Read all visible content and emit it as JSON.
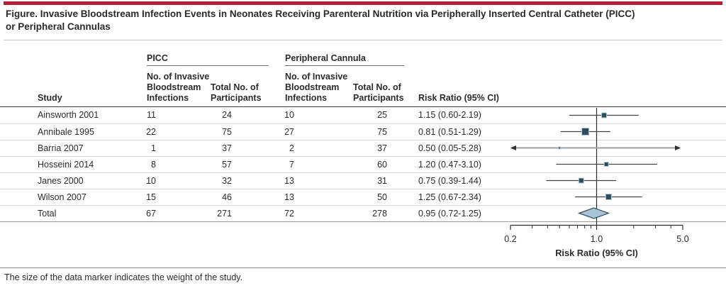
{
  "title": {
    "line1": "Figure. Invasive Bloodstream Infection Events in Neonates Receiving Parenteral Nutrition via Peripherally Inserted Central Catheter (PICC)",
    "line2": "or Peripheral Cannulas"
  },
  "table": {
    "col_study": "Study",
    "group1": {
      "label": "PICC",
      "col_events": "No. of Invasive Bloodstream Infections",
      "col_total": "Total No. of Participants"
    },
    "group2": {
      "label": "Peripheral Cannula",
      "col_events": "No. of Invasive Bloodstream Infections",
      "col_total": "Total No. of Participants"
    },
    "col_rr": "Risk Ratio (95% CI)",
    "rows": [
      {
        "study": "Ainsworth 2001",
        "picc_events": "11",
        "picc_total": "24",
        "pc_events": "10",
        "pc_total": "25",
        "rr": "1.15 (0.60-2.19)"
      },
      {
        "study": "Annibale 1995",
        "picc_events": "22",
        "picc_total": "75",
        "pc_events": "27",
        "pc_total": "75",
        "rr": "0.81 (0.51-1.29)"
      },
      {
        "study": "Barria 2007",
        "picc_events": "1",
        "picc_total": "37",
        "pc_events": "2",
        "pc_total": "37",
        "rr": "0.50 (0.05-5.28)"
      },
      {
        "study": "Hosseini 2014",
        "picc_events": "8",
        "picc_total": "57",
        "pc_events": "7",
        "pc_total": "60",
        "rr": "1.20 (0.47-3.10)"
      },
      {
        "study": "Janes 2000",
        "picc_events": "10",
        "picc_total": "32",
        "pc_events": "13",
        "pc_total": "31",
        "rr": "0.75 (0.39-1.44)"
      },
      {
        "study": "Wilson 2007",
        "picc_events": "15",
        "picc_total": "46",
        "pc_events": "13",
        "pc_total": "50",
        "rr": "1.25 (0.67-2.34)"
      },
      {
        "study": "Total",
        "picc_events": "67",
        "picc_total": "271",
        "pc_events": "72",
        "pc_total": "278",
        "rr": "0.95 (0.72-1.25)"
      }
    ]
  },
  "footer": "The size of the data marker indicates the weight of the study.",
  "chart_data": {
    "type": "scatter",
    "subtype": "forest-plot",
    "xlabel": "Risk Ratio (95% CI)",
    "x_scale": "log",
    "x_min": 0.2,
    "x_max": 5.0,
    "x_ticks_major": [
      0.2,
      1.0,
      5.0
    ],
    "x_tick_labels": [
      "0.2",
      "1.0",
      "5.0"
    ],
    "x_ticks_minor": [
      0.3,
      0.4,
      0.5,
      0.6,
      0.7,
      0.8,
      0.9,
      2,
      3,
      4
    ],
    "ref_line": 1.0,
    "studies": [
      {
        "name": "Ainsworth 2001",
        "rr": 1.15,
        "ci_low": 0.6,
        "ci_high": 2.19,
        "marker_size": 7
      },
      {
        "name": "Annibale 1995",
        "rr": 0.81,
        "ci_low": 0.51,
        "ci_high": 1.29,
        "marker_size": 10
      },
      {
        "name": "Barria 2007",
        "rr": 0.5,
        "ci_low": 0.05,
        "ci_high": 5.28,
        "marker_size": 3
      },
      {
        "name": "Hosseini 2014",
        "rr": 1.2,
        "ci_low": 0.47,
        "ci_high": 3.1,
        "marker_size": 6
      },
      {
        "name": "Janes 2000",
        "rr": 0.75,
        "ci_low": 0.39,
        "ci_high": 1.44,
        "marker_size": 7
      },
      {
        "name": "Wilson 2007",
        "rr": 1.25,
        "ci_low": 0.67,
        "ci_high": 2.34,
        "marker_size": 8
      }
    ],
    "total": {
      "name": "Total",
      "rr": 0.95,
      "ci_low": 0.72,
      "ci_high": 1.25
    },
    "colors": {
      "marker": "#2e4d5c",
      "marker_halo": "#b6c9d6",
      "ci_line": "#444444",
      "clipped_line": "#a0a0a0",
      "arrow": "#2f2f2f",
      "diamond_fill": "#a9c5d5",
      "diamond_stroke": "#33505f",
      "axis": "#2f2f2f",
      "text": "#2b2b2b"
    }
  }
}
